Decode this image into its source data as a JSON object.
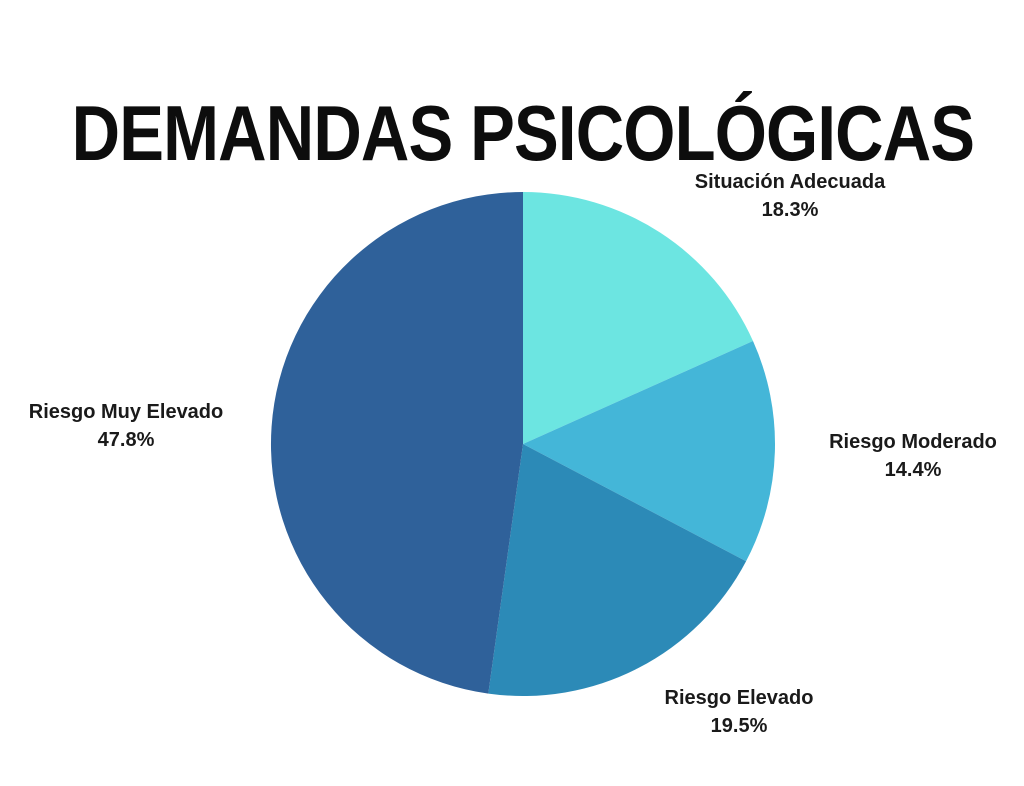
{
  "chart_data": {
    "type": "pie",
    "title": "DEMANDAS PSICOLÓGICAS",
    "start_angle_deg": 0,
    "direction": "clockwise",
    "legend_position": "none",
    "labels_layout": "around-pie",
    "slices": [
      {
        "label": "Situación Adecuada",
        "value": 18.3,
        "pct_label": "18.3%",
        "color": "#6CE5E1",
        "label_side": "top-right"
      },
      {
        "label": "Riesgo Moderado",
        "value": 14.4,
        "pct_label": "14.4%",
        "color": "#44B6D8",
        "label_side": "right"
      },
      {
        "label": "Riesgo Elevado",
        "value": 19.5,
        "pct_label": "19.5%",
        "color": "#2C8AB7",
        "label_side": "bottom"
      },
      {
        "label": "Riesgo Muy Elevado",
        "value": 47.8,
        "pct_label": "47.8%",
        "color": "#2F619A",
        "label_side": "left"
      }
    ]
  },
  "theme": {
    "background": "#FFFFFF",
    "title_color": "#0D0D0D",
    "label_color": "#1A1A1A"
  }
}
